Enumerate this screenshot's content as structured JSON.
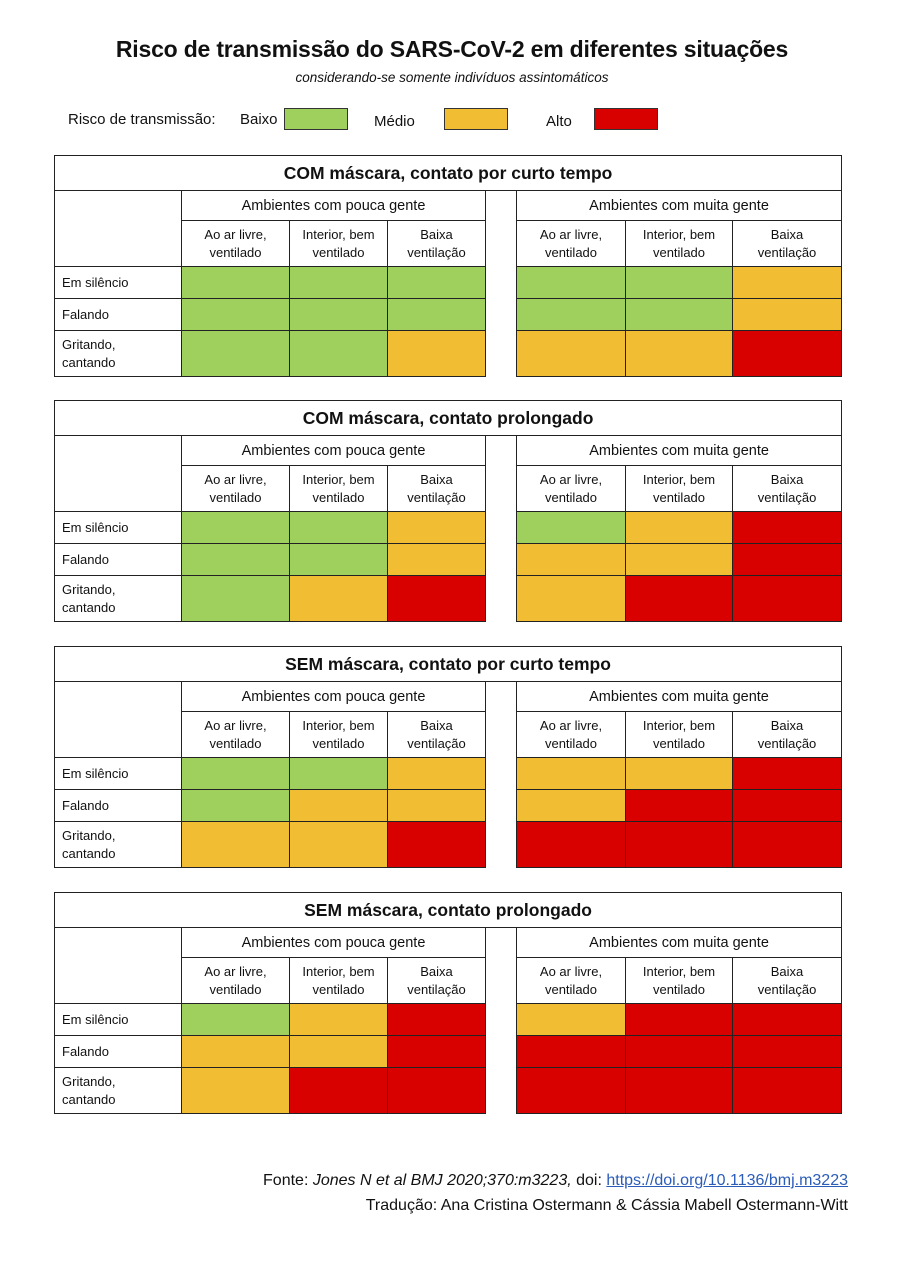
{
  "title": "Risco de transmissão do SARS-CoV-2 em diferentes situações",
  "subtitle": "considerando-se somente indivíduos assintomáticos",
  "legend": {
    "label": "Risco de transmissão:",
    "levels": [
      {
        "label": "Baixo",
        "color": "#9fcf5c"
      },
      {
        "label": "Médio",
        "color": "#f0bd33"
      },
      {
        "label": "Alto",
        "color": "#d90000"
      }
    ]
  },
  "colors": {
    "baixo": "#9fcf5c",
    "medio": "#f0bd33",
    "alto": "#d90000"
  },
  "group_labels": [
    "Ambientes com pouca gente",
    "Ambientes com muita gente"
  ],
  "column_labels": [
    [
      "Ao ar livre,",
      "ventilado"
    ],
    [
      "Interior, bem",
      "ventilado"
    ],
    [
      "Baixa",
      "ventilação"
    ]
  ],
  "row_labels": [
    [
      "Em silêncio"
    ],
    [
      "Falando"
    ],
    [
      "Gritando,",
      "cantando"
    ]
  ],
  "tables": [
    {
      "title": "COM máscara, contato por curto tempo",
      "risk": [
        [
          "baixo",
          "baixo",
          "baixo",
          "baixo",
          "baixo",
          "medio"
        ],
        [
          "baixo",
          "baixo",
          "baixo",
          "baixo",
          "baixo",
          "medio"
        ],
        [
          "baixo",
          "baixo",
          "medio",
          "medio",
          "medio",
          "alto"
        ]
      ]
    },
    {
      "title": "COM máscara, contato prolongado",
      "risk": [
        [
          "baixo",
          "baixo",
          "medio",
          "baixo",
          "medio",
          "alto"
        ],
        [
          "baixo",
          "baixo",
          "medio",
          "medio",
          "medio",
          "alto"
        ],
        [
          "baixo",
          "medio",
          "alto",
          "medio",
          "alto",
          "alto"
        ]
      ]
    },
    {
      "title": "SEM máscara, contato por curto tempo",
      "risk": [
        [
          "baixo",
          "baixo",
          "medio",
          "medio",
          "medio",
          "alto"
        ],
        [
          "baixo",
          "medio",
          "medio",
          "medio",
          "alto",
          "alto"
        ],
        [
          "medio",
          "medio",
          "alto",
          "alto",
          "alto",
          "alto"
        ]
      ]
    },
    {
      "title": "SEM máscara, contato prolongado",
      "risk": [
        [
          "baixo",
          "medio",
          "alto",
          "medio",
          "alto",
          "alto"
        ],
        [
          "medio",
          "medio",
          "alto",
          "alto",
          "alto",
          "alto"
        ],
        [
          "medio",
          "alto",
          "alto",
          "alto",
          "alto",
          "alto"
        ]
      ]
    }
  ],
  "footer": {
    "source_prefix": "Fonte: ",
    "source_citation": "Jones N et al BMJ 2020;370:m3223,",
    "doi_prefix": " doi: ",
    "doi_link": "https://doi.org/10.1136/bmj.m3223",
    "translation": "Tradução: Ana Cristina Ostermann & Cássia Mabell Ostermann-Witt"
  }
}
